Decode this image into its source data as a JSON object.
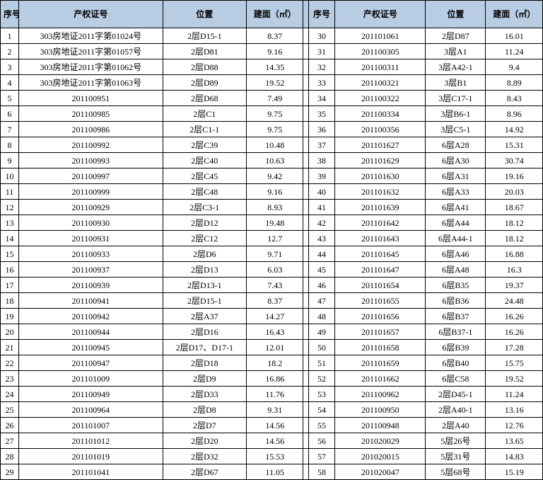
{
  "headers": {
    "seq": "序号",
    "cert": "产权证号",
    "loc": "位置",
    "area": "建面（㎡）"
  },
  "colors": {
    "header_bg": "#b8cce4",
    "border": "#000000",
    "text": "#000000",
    "bg": "#ffffff"
  },
  "left": [
    {
      "seq": "1",
      "cert": "303房地证2011字第01024号",
      "loc": "2层D15-1",
      "area": "8.37"
    },
    {
      "seq": "2",
      "cert": "303房地证2011字第01057号",
      "loc": "2层D81",
      "area": "9.16"
    },
    {
      "seq": "3",
      "cert": "303房地证2011字第01062号",
      "loc": "2层D88",
      "area": "14.35"
    },
    {
      "seq": "4",
      "cert": "303房地证2011字第01063号",
      "loc": "2层D89",
      "area": "19.52"
    },
    {
      "seq": "5",
      "cert": "201100951",
      "loc": "2层D68",
      "area": "7.49"
    },
    {
      "seq": "6",
      "cert": "201100985",
      "loc": "2层C1",
      "area": "9.75"
    },
    {
      "seq": "7",
      "cert": "201100986",
      "loc": "2层C1-1",
      "area": "9.75"
    },
    {
      "seq": "8",
      "cert": "201100992",
      "loc": "2层C39",
      "area": "10.48"
    },
    {
      "seq": "9",
      "cert": "201100993",
      "loc": "2层C40",
      "area": "10.63"
    },
    {
      "seq": "10",
      "cert": "201100997",
      "loc": "2层C45",
      "area": "9.42"
    },
    {
      "seq": "11",
      "cert": "201100999",
      "loc": "2层C48",
      "area": "9.16"
    },
    {
      "seq": "12",
      "cert": "201100929",
      "loc": "2层C3-1",
      "area": "8.93"
    },
    {
      "seq": "13",
      "cert": "201100930",
      "loc": "2层D12",
      "area": "19.48"
    },
    {
      "seq": "14",
      "cert": "201100931",
      "loc": "2层C12",
      "area": "12.7"
    },
    {
      "seq": "15",
      "cert": "201100933",
      "loc": "2层D6",
      "area": "9.71"
    },
    {
      "seq": "16",
      "cert": "201100937",
      "loc": "2层D13",
      "area": "6.03"
    },
    {
      "seq": "17",
      "cert": "201100939",
      "loc": "2层D13-1",
      "area": "7.43"
    },
    {
      "seq": "18",
      "cert": "201100941",
      "loc": "2层D15-1",
      "area": "8.37"
    },
    {
      "seq": "19",
      "cert": "201100942",
      "loc": "2层A37",
      "area": "14.27"
    },
    {
      "seq": "20",
      "cert": "201100944",
      "loc": "2层D16",
      "area": "16.43"
    },
    {
      "seq": "21",
      "cert": "201100945",
      "loc": "2层D17、D17-1",
      "area": "12.01"
    },
    {
      "seq": "22",
      "cert": "201100947",
      "loc": "2层D18",
      "area": "18.2"
    },
    {
      "seq": "23",
      "cert": "201101009",
      "loc": "2层D9",
      "area": "16.86"
    },
    {
      "seq": "24",
      "cert": "201100949",
      "loc": "2层D33",
      "area": "11.76"
    },
    {
      "seq": "25",
      "cert": "201100964",
      "loc": "2层D8",
      "area": "9.31"
    },
    {
      "seq": "26",
      "cert": "201101007",
      "loc": "2层D7",
      "area": "14.56"
    },
    {
      "seq": "27",
      "cert": "201101012",
      "loc": "2层D20",
      "area": "14.56"
    },
    {
      "seq": "28",
      "cert": "201101019",
      "loc": "2层D32",
      "area": "15.53"
    },
    {
      "seq": "29",
      "cert": "201101041",
      "loc": "2层D67",
      "area": "11.05"
    }
  ],
  "right": [
    {
      "seq": "30",
      "cert": "201101061",
      "loc": "2层D87",
      "area": "16.01"
    },
    {
      "seq": "31",
      "cert": "201100305",
      "loc": "3层A1",
      "area": "11.24"
    },
    {
      "seq": "32",
      "cert": "201100311",
      "loc": "3层A42-1",
      "area": "9.4"
    },
    {
      "seq": "33",
      "cert": "201100321",
      "loc": "3层B1",
      "area": "8.89"
    },
    {
      "seq": "34",
      "cert": "201100322",
      "loc": "3层C17-1",
      "area": "8.43"
    },
    {
      "seq": "35",
      "cert": "201100334",
      "loc": "3层B6-1",
      "area": "8.96"
    },
    {
      "seq": "36",
      "cert": "201100356",
      "loc": "3层C5-1",
      "area": "14.92"
    },
    {
      "seq": "37",
      "cert": "201101627",
      "loc": "6层A28",
      "area": "15.31"
    },
    {
      "seq": "38",
      "cert": "201101629",
      "loc": "6层A30",
      "area": "30.74"
    },
    {
      "seq": "39",
      "cert": "201101630",
      "loc": "6层A31",
      "area": "19.16"
    },
    {
      "seq": "40",
      "cert": "201101632",
      "loc": "6层A33",
      "area": "20.03"
    },
    {
      "seq": "41",
      "cert": "201101639",
      "loc": "6层A41",
      "area": "18.67"
    },
    {
      "seq": "42",
      "cert": "201101642",
      "loc": "6层A44",
      "area": "18.12"
    },
    {
      "seq": "43",
      "cert": "201101643",
      "loc": "6层A44-1",
      "area": "18.12"
    },
    {
      "seq": "44",
      "cert": "201101645",
      "loc": "6层A46",
      "area": "16.88"
    },
    {
      "seq": "45",
      "cert": "201101647",
      "loc": "6层A48",
      "area": "16.3"
    },
    {
      "seq": "46",
      "cert": "201101654",
      "loc": "6层B35",
      "area": "19.37"
    },
    {
      "seq": "47",
      "cert": "201101655",
      "loc": "6层B36",
      "area": "24.48"
    },
    {
      "seq": "48",
      "cert": "201101656",
      "loc": "6层B37",
      "area": "16.26"
    },
    {
      "seq": "49",
      "cert": "201101657",
      "loc": "6层B37-1",
      "area": "16.26"
    },
    {
      "seq": "50",
      "cert": "201101658",
      "loc": "6层B39",
      "area": "17.28"
    },
    {
      "seq": "51",
      "cert": "201101659",
      "loc": "6层B40",
      "area": "15.75"
    },
    {
      "seq": "52",
      "cert": "201101662",
      "loc": "6层C58",
      "area": "19.52"
    },
    {
      "seq": "53",
      "cert": "201100962",
      "loc": "2层D45-1",
      "area": "11.24"
    },
    {
      "seq": "54",
      "cert": "201100950",
      "loc": "2层A40-1",
      "area": "13.16"
    },
    {
      "seq": "55",
      "cert": "201100948",
      "loc": "2层A40",
      "area": "12.76"
    },
    {
      "seq": "56",
      "cert": "201020029",
      "loc": "5层26号",
      "area": "13.65"
    },
    {
      "seq": "57",
      "cert": "201020015",
      "loc": "5层31号",
      "area": "14.83"
    },
    {
      "seq": "58",
      "cert": "201020047",
      "loc": "5层68号",
      "area": "15.19"
    }
  ]
}
